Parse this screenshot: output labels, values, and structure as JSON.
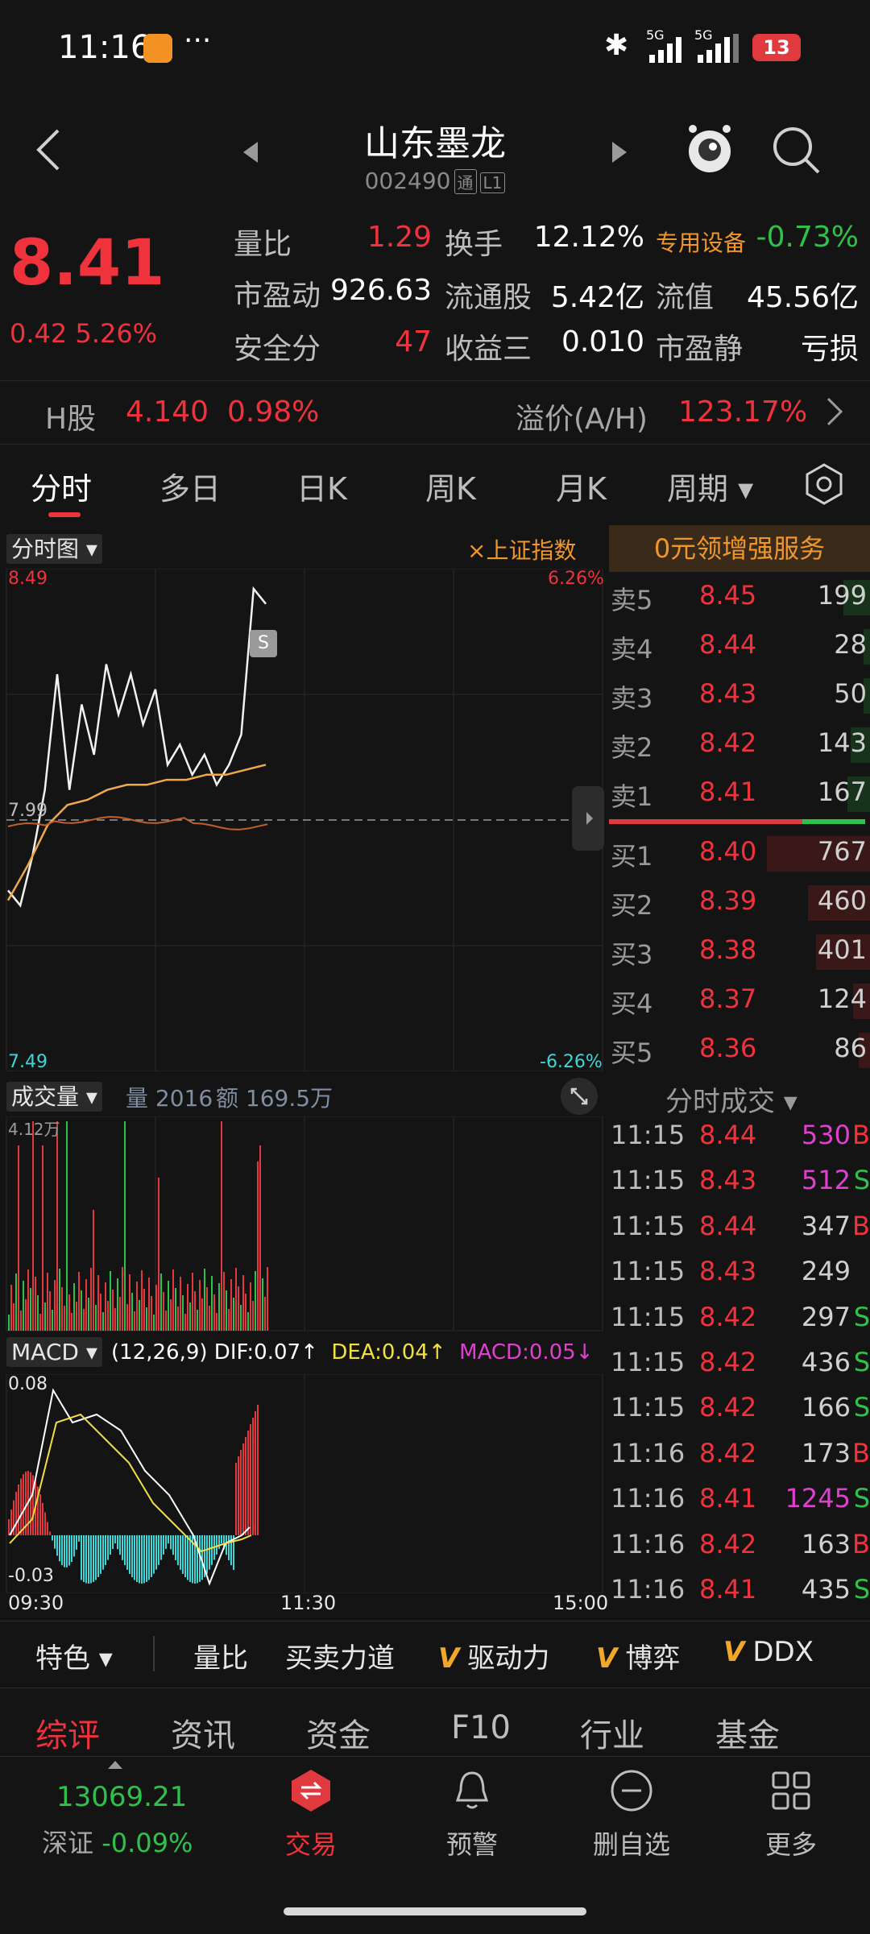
{
  "status_bar": {
    "time": "11:16",
    "battery": "13",
    "net1": "5G",
    "net2": "5G"
  },
  "header": {
    "title": "山东墨龙",
    "code": "002490",
    "tag1": "通",
    "tag2": "L1"
  },
  "quote": {
    "price": "8.41",
    "change": "0.42",
    "change_pct": "5.26%",
    "fields": [
      {
        "label": "量比",
        "value": "1.29",
        "color": "red"
      },
      {
        "label": "换手",
        "value": "12.12%",
        "color": "white"
      },
      {
        "label": "专用设备",
        "value": "-0.73%",
        "color": "green"
      },
      {
        "label": "市盈动",
        "value": "926.63",
        "color": "white"
      },
      {
        "label": "流通股",
        "value": "5.42亿",
        "color": "white"
      },
      {
        "label": "流值",
        "value": "45.56亿",
        "color": "white"
      },
      {
        "label": "安全分",
        "value": "47",
        "color": "red"
      },
      {
        "label": "收益三",
        "value": "0.010",
        "color": "white"
      },
      {
        "label": "市盈静",
        "value": "亏损",
        "color": "white"
      }
    ]
  },
  "hshare": {
    "label": "H股",
    "price": "4.140",
    "pct": "0.98%",
    "premium_label": "溢价(A/H)",
    "premium": "123.17%"
  },
  "tabs": [
    "分时",
    "多日",
    "日K",
    "周K",
    "月K",
    "周期"
  ],
  "chart": {
    "selector": "分时图",
    "index_toggle": "×上证指数",
    "y_top": "8.49",
    "y_bottom": "7.49",
    "y_mid": "7.99",
    "pct_top": "6.26%",
    "pct_bottom": "-6.26%",
    "sell_marker": "S",
    "promo": "0元领增强服务"
  },
  "order_book": {
    "sells": [
      {
        "label": "卖5",
        "price": "8.45",
        "vol": "199"
      },
      {
        "label": "卖4",
        "price": "8.44",
        "vol": "28"
      },
      {
        "label": "卖3",
        "price": "8.43",
        "vol": "50"
      },
      {
        "label": "卖2",
        "price": "8.42",
        "vol": "143"
      },
      {
        "label": "卖1",
        "price": "8.41",
        "vol": "167"
      }
    ],
    "buys": [
      {
        "label": "买1",
        "price": "8.40",
        "vol": "767"
      },
      {
        "label": "买2",
        "price": "8.39",
        "vol": "460"
      },
      {
        "label": "买3",
        "price": "8.38",
        "vol": "401"
      },
      {
        "label": "买4",
        "price": "8.37",
        "vol": "124"
      },
      {
        "label": "买5",
        "price": "8.36",
        "vol": "86"
      }
    ]
  },
  "volume": {
    "selector": "成交量",
    "vol_label": "量 2016",
    "amt_label": "额 169.5万",
    "y_top": "4.12万"
  },
  "ticks": {
    "title": "分时成交",
    "rows": [
      {
        "time": "11:15",
        "price": "8.44",
        "vol": "530",
        "side": "B"
      },
      {
        "time": "11:15",
        "price": "8.43",
        "vol": "512",
        "side": "S"
      },
      {
        "time": "11:15",
        "price": "8.44",
        "vol": "347",
        "side": "B"
      },
      {
        "time": "11:15",
        "price": "8.43",
        "vol": "249",
        "side": ""
      },
      {
        "time": "11:15",
        "price": "8.42",
        "vol": "297",
        "side": "S"
      },
      {
        "time": "11:15",
        "price": "8.42",
        "vol": "436",
        "side": "S"
      },
      {
        "time": "11:15",
        "price": "8.42",
        "vol": "166",
        "side": "S"
      },
      {
        "time": "11:16",
        "price": "8.42",
        "vol": "173",
        "side": "B"
      },
      {
        "time": "11:16",
        "price": "8.41",
        "vol": "1245",
        "side": "S"
      },
      {
        "time": "11:16",
        "price": "8.42",
        "vol": "163",
        "side": "B"
      },
      {
        "time": "11:16",
        "price": "8.41",
        "vol": "435",
        "side": "S"
      }
    ]
  },
  "macd": {
    "selector": "MACD",
    "params": "(12,26,9)",
    "dif": "DIF:0.07↑",
    "dea": "DEA:0.04↑",
    "macd": "MACD:0.05↓",
    "y_top": "0.08",
    "y_bottom": "-0.03",
    "x_start": "09:30",
    "x_mid": "11:30",
    "x_end": "15:00"
  },
  "featbar": [
    "特色",
    "量比",
    "买卖力道",
    "驱动力",
    "博弈",
    "DDX"
  ],
  "subtabs": [
    "综评",
    "资讯",
    "资金",
    "F10",
    "行业",
    "基金"
  ],
  "bottom_nav": {
    "index_value": "13069.21",
    "index_name": "深证",
    "index_pct": "-0.09%",
    "items": [
      "交易",
      "预警",
      "删自选",
      "更多"
    ]
  },
  "chart_data": {
    "type": "line",
    "title": "",
    "x_range": [
      "09:30",
      "15:00"
    ],
    "ylim": [
      7.49,
      8.49
    ],
    "series": [
      {
        "values": [
          7.85,
          7.82,
          7.92,
          8.05,
          8.28,
          8.05,
          8.22,
          8.12,
          8.3,
          8.2,
          8.28,
          8.18,
          8.25,
          8.1,
          8.14,
          8.08,
          8.12,
          8.06,
          8.1,
          8.16,
          8.45,
          8.42
        ]
      },
      {
        "values": [
          7.83,
          7.9,
          7.98,
          8.02,
          8.03,
          8.05,
          8.06,
          8.06,
          8.07,
          8.07,
          8.08,
          8.08,
          8.09,
          8.1
        ]
      }
    ]
  }
}
